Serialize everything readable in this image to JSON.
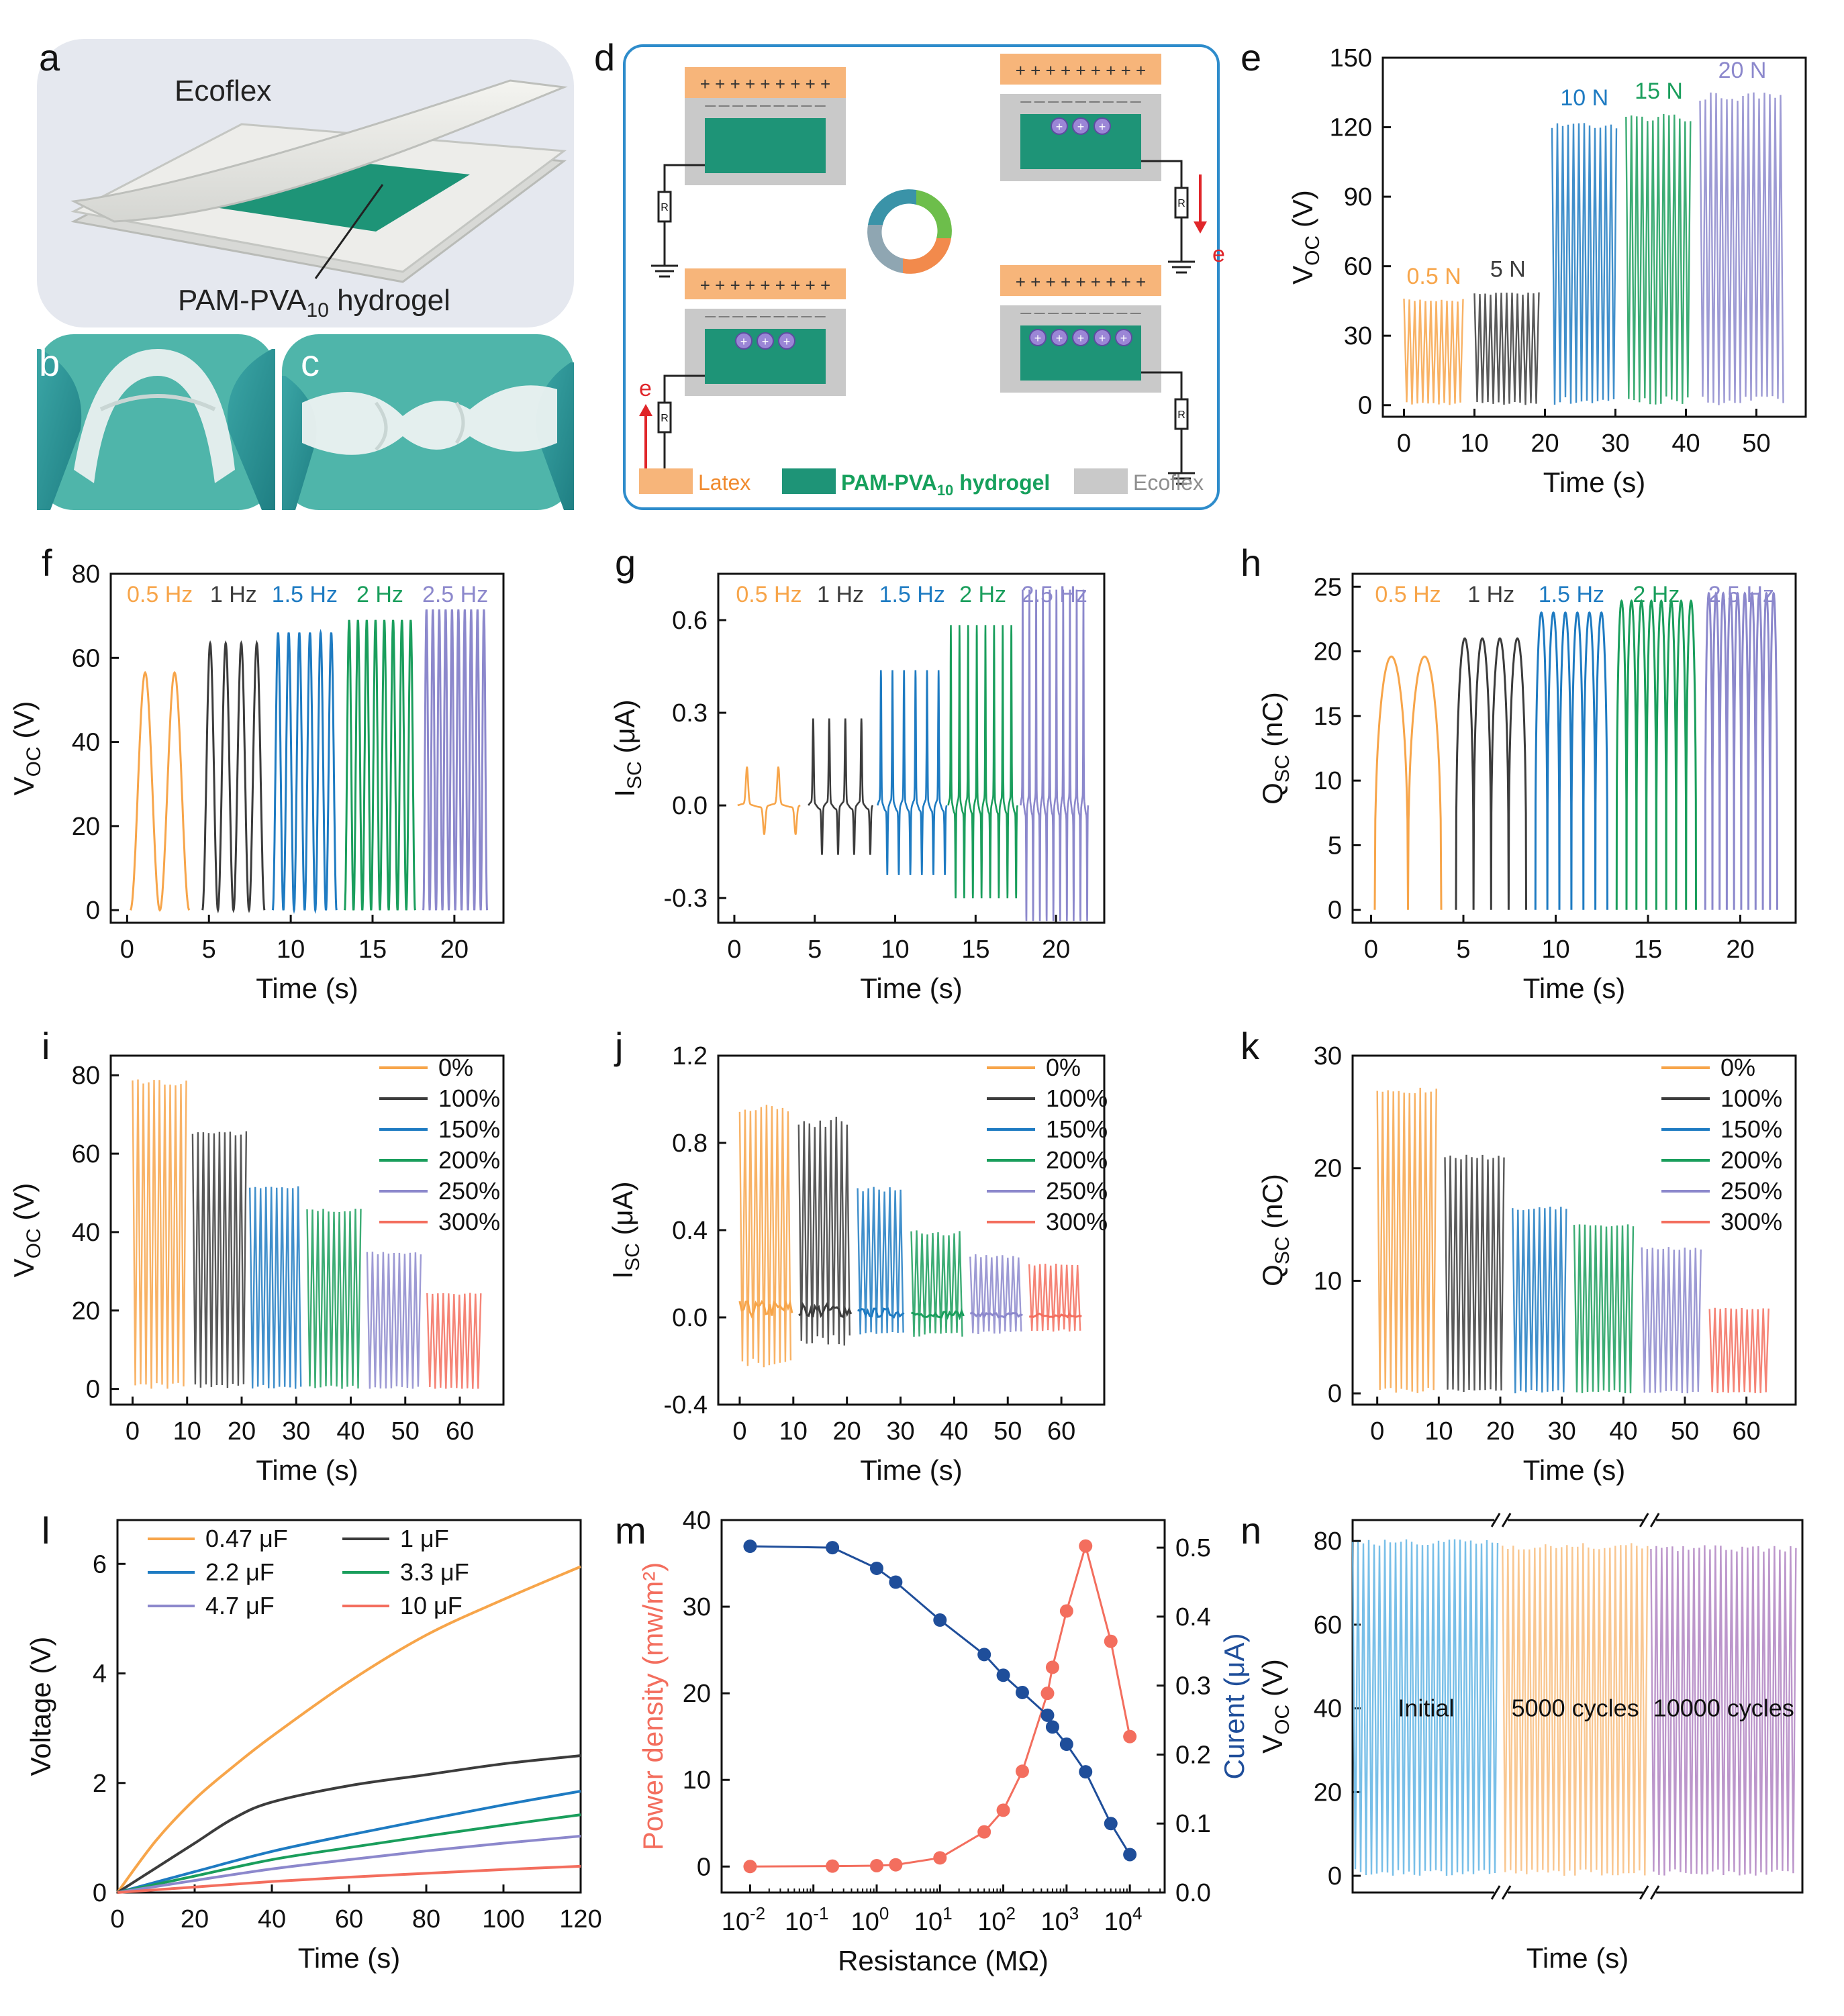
{
  "panel_labels": [
    "a",
    "b",
    "c",
    "d",
    "e",
    "f",
    "g",
    "h",
    "i",
    "j",
    "k",
    "l",
    "m",
    "n"
  ],
  "colors": {
    "orange": "#F7A54A",
    "black": "#3C3C3C",
    "blue": "#1E7BC2",
    "green": "#1A9E5C",
    "purple": "#8C88CC",
    "red": "#F36E5E",
    "navy": "#1F4E9A",
    "latex": "#F7B57A",
    "hydrogel": "#1E9477",
    "ecoflex": "#C9C9C9",
    "photo_bg": "#E4E7EE",
    "glove": "#2C8F93"
  },
  "photo_a": {
    "top_label": "Ecoflex",
    "bottom_label": "PAM-PVA",
    "bottom_sub": "10",
    "bottom_tail": " hydrogel"
  },
  "schematic_d": {
    "plus_row": "+ + + + + + + + +",
    "minus_row": "— — — — — — — — —",
    "resistor": "R",
    "electron": "e",
    "legend": [
      {
        "text": "Latex",
        "color": "#F7B57A",
        "text_color": "#F08A2E"
      },
      {
        "text": "PAM-PVA",
        "sub": "10",
        "tail": " hydrogel",
        "color": "#1E9477",
        "text_color": "#16A05C"
      },
      {
        "text": "Ecoflex",
        "color": "#C9C9C9",
        "text_color": "#8E8E8E"
      }
    ]
  },
  "chart_data": [
    {
      "id": "e",
      "type": "line",
      "xlabel": "Time (s)",
      "ylabel": "V",
      "ylabel_sub": "OC",
      "ylabel_unit": " (V)",
      "xlim": [
        -3,
        57
      ],
      "ylim": [
        -5,
        150
      ],
      "xticks": [
        0,
        10,
        20,
        30,
        40,
        50
      ],
      "yticks": [
        0,
        30,
        60,
        90,
        120,
        150
      ],
      "series": [
        {
          "name": "0.5 N",
          "x_range": [
            0,
            8.5
          ],
          "peak": 46,
          "color": "#F7A54A"
        },
        {
          "name": "5 N",
          "x_range": [
            10,
            19.5
          ],
          "peak": 49,
          "color": "#3C3C3C"
        },
        {
          "name": "10 N",
          "x_range": [
            21,
            30.2
          ],
          "peak": 123,
          "color": "#1E7BC2"
        },
        {
          "name": "15 N",
          "x_range": [
            31.5,
            40.8
          ],
          "peak": 126,
          "color": "#1A9E5C"
        },
        {
          "name": "20 N",
          "x_range": [
            42,
            54
          ],
          "peak": 135,
          "color": "#8C88CC"
        }
      ]
    },
    {
      "id": "f",
      "type": "line",
      "xlabel": "Time (s)",
      "ylabel": "V",
      "ylabel_sub": "OC",
      "ylabel_unit": " (V)",
      "xlim": [
        -1,
        23
      ],
      "ylim": [
        -3,
        80
      ],
      "xticks": [
        0,
        5,
        10,
        15,
        20
      ],
      "yticks": [
        0,
        20,
        40,
        60,
        80
      ],
      "series": [
        {
          "name": "0.5 Hz",
          "x_range": [
            0.2,
            3.8
          ],
          "peak": 56.5,
          "cycles": 2,
          "color": "#F7A54A"
        },
        {
          "name": "1 Hz",
          "x_range": [
            4.6,
            8.4
          ],
          "peak": 63.5,
          "cycles": 4,
          "color": "#3C3C3C"
        },
        {
          "name": "1.5 Hz",
          "x_range": [
            8.9,
            12.8
          ],
          "peak": 66,
          "cycles": 6,
          "color": "#1E7BC2"
        },
        {
          "name": "2 Hz",
          "x_range": [
            13.3,
            17.6
          ],
          "peak": 69,
          "cycles": 8,
          "color": "#1A9E5C"
        },
        {
          "name": "2.5 Hz",
          "x_range": [
            18.1,
            22
          ],
          "peak": 71.5,
          "cycles": 10,
          "color": "#8C88CC"
        }
      ]
    },
    {
      "id": "g",
      "type": "line",
      "xlabel": "Time (s)",
      "ylabel": "I",
      "ylabel_sub": "SC",
      "ylabel_unit": " (μA)",
      "xlim": [
        -1,
        23
      ],
      "ylim": [
        -0.38,
        0.75
      ],
      "xticks": [
        0,
        5,
        10,
        15,
        20
      ],
      "yticks": [
        -0.3,
        0.0,
        0.3,
        0.6
      ],
      "series": [
        {
          "name": "0.5 Hz",
          "x_range": [
            0.2,
            4.1
          ],
          "peak": 0.12,
          "trough": -0.09,
          "cycles": 2,
          "color": "#F7A54A"
        },
        {
          "name": "1 Hz",
          "x_range": [
            4.6,
            8.6
          ],
          "peak": 0.27,
          "trough": -0.15,
          "cycles": 4,
          "color": "#3C3C3C"
        },
        {
          "name": "1.5 Hz",
          "x_range": [
            8.9,
            13.2
          ],
          "peak": 0.42,
          "trough": -0.21,
          "cycles": 6,
          "color": "#1E7BC2"
        },
        {
          "name": "2 Hz",
          "x_range": [
            13.3,
            17.6
          ],
          "peak": 0.56,
          "trough": -0.28,
          "cycles": 8,
          "color": "#1A9E5C"
        },
        {
          "name": "2.5 Hz",
          "x_range": [
            17.8,
            22
          ],
          "peak": 0.67,
          "trough": -0.35,
          "cycles": 10,
          "color": "#8C88CC"
        }
      ]
    },
    {
      "id": "h",
      "type": "line",
      "xlabel": "Time (s)",
      "ylabel": "Q",
      "ylabel_sub": "SC",
      "ylabel_unit": " (nC)",
      "xlim": [
        -1,
        23
      ],
      "ylim": [
        -1,
        26
      ],
      "xticks": [
        0,
        5,
        10,
        15,
        20
      ],
      "yticks": [
        0,
        5,
        10,
        15,
        20,
        25
      ],
      "series": [
        {
          "name": "0.5 Hz",
          "x_range": [
            0.2,
            3.8
          ],
          "peak": 19.6,
          "cycles": 2,
          "color": "#F7A54A"
        },
        {
          "name": "1 Hz",
          "x_range": [
            4.6,
            8.4
          ],
          "peak": 21,
          "cycles": 4,
          "color": "#3C3C3C"
        },
        {
          "name": "1.5 Hz",
          "x_range": [
            8.9,
            12.8
          ],
          "peak": 23,
          "cycles": 6,
          "color": "#1E7BC2"
        },
        {
          "name": "2 Hz",
          "x_range": [
            13.3,
            17.6
          ],
          "peak": 23.9,
          "cycles": 8,
          "color": "#1A9E5C"
        },
        {
          "name": "2.5 Hz",
          "x_range": [
            18.1,
            22
          ],
          "peak": 24.5,
          "cycles": 10,
          "color": "#8C88CC"
        }
      ]
    },
    {
      "id": "i",
      "type": "line",
      "xlabel": "Time (s)",
      "ylabel": "V",
      "ylabel_sub": "OC",
      "ylabel_unit": " (V)",
      "xlim": [
        -4,
        68
      ],
      "ylim": [
        -4,
        85
      ],
      "xticks": [
        0,
        10,
        20,
        30,
        40,
        50,
        60
      ],
      "yticks": [
        0,
        20,
        40,
        60,
        80
      ],
      "series": [
        {
          "name": "0%",
          "x_range": [
            0,
            10
          ],
          "peak": 79,
          "color": "#F7A54A"
        },
        {
          "name": "100%",
          "x_range": [
            11,
            21
          ],
          "peak": 66,
          "color": "#3C3C3C"
        },
        {
          "name": "150%",
          "x_range": [
            21.5,
            31
          ],
          "peak": 52,
          "color": "#1E7BC2"
        },
        {
          "name": "200%",
          "x_range": [
            32,
            42
          ],
          "peak": 46,
          "color": "#1A9E5C"
        },
        {
          "name": "250%",
          "x_range": [
            43,
            53
          ],
          "peak": 35,
          "color": "#8C88CC"
        },
        {
          "name": "300%",
          "x_range": [
            54,
            64
          ],
          "peak": 24.5,
          "color": "#F36E5E"
        }
      ]
    },
    {
      "id": "j",
      "type": "line",
      "xlabel": "Time (s)",
      "ylabel": "I",
      "ylabel_sub": "SC",
      "ylabel_unit": " (μA)",
      "xlim": [
        -4,
        68
      ],
      "ylim": [
        -0.4,
        1.2
      ],
      "xticks": [
        0,
        10,
        20,
        30,
        40,
        50,
        60
      ],
      "yticks": [
        -0.4,
        0.0,
        0.4,
        0.8,
        1.2
      ],
      "series": [
        {
          "name": "0%",
          "x_range": [
            0,
            10
          ],
          "peak": 1.0,
          "trough": -0.25,
          "color": "#F7A54A"
        },
        {
          "name": "100%",
          "x_range": [
            11,
            21
          ],
          "peak": 0.92,
          "trough": -0.13,
          "color": "#3C3C3C"
        },
        {
          "name": "150%",
          "x_range": [
            22,
            31
          ],
          "peak": 0.6,
          "trough": -0.1,
          "color": "#1E7BC2"
        },
        {
          "name": "200%",
          "x_range": [
            32,
            42
          ],
          "peak": 0.4,
          "trough": -0.09,
          "color": "#1A9E5C"
        },
        {
          "name": "250%",
          "x_range": [
            43,
            53
          ],
          "peak": 0.29,
          "trough": -0.08,
          "color": "#8C88CC"
        },
        {
          "name": "300%",
          "x_range": [
            54,
            64
          ],
          "peak": 0.25,
          "trough": -0.07,
          "color": "#F36E5E"
        }
      ]
    },
    {
      "id": "k",
      "type": "line",
      "xlabel": "Time (s)",
      "ylabel": "Q",
      "ylabel_sub": "SC",
      "ylabel_unit": " (nC)",
      "xlim": [
        -4,
        68
      ],
      "ylim": [
        -1,
        30
      ],
      "xticks": [
        0,
        10,
        20,
        30,
        40,
        50,
        60
      ],
      "yticks": [
        0,
        10,
        20,
        30
      ],
      "series": [
        {
          "name": "0%",
          "x_range": [
            0,
            10
          ],
          "peak": 27.2,
          "color": "#F7A54A"
        },
        {
          "name": "100%",
          "x_range": [
            11,
            21
          ],
          "peak": 21.2,
          "color": "#3C3C3C"
        },
        {
          "name": "150%",
          "x_range": [
            22,
            31
          ],
          "peak": 16.6,
          "color": "#1E7BC2"
        },
        {
          "name": "200%",
          "x_range": [
            32,
            42
          ],
          "peak": 15.1,
          "color": "#1A9E5C"
        },
        {
          "name": "250%",
          "x_range": [
            43,
            53
          ],
          "peak": 13,
          "color": "#8C88CC"
        },
        {
          "name": "300%",
          "x_range": [
            54,
            64
          ],
          "peak": 7.6,
          "color": "#F36E5E"
        }
      ]
    },
    {
      "id": "l",
      "type": "line",
      "xlabel": "Time (s)",
      "ylabel": "Voltage (V)",
      "xlim": [
        0,
        120
      ],
      "ylim": [
        0,
        6.8
      ],
      "xticks": [
        0,
        20,
        40,
        60,
        80,
        100,
        120
      ],
      "yticks": [
        0,
        2,
        4,
        6
      ],
      "series": [
        {
          "name": "0.47 μF",
          "color": "#F7A54A",
          "x": [
            0,
            10,
            20,
            30,
            40,
            60,
            80,
            100,
            120
          ],
          "y": [
            0,
            0.95,
            1.7,
            2.3,
            2.85,
            3.85,
            4.7,
            5.35,
            5.95
          ]
        },
        {
          "name": "1 μF",
          "color": "#3C3C3C",
          "x": [
            0,
            10,
            20,
            30,
            40,
            60,
            80,
            100,
            120
          ],
          "y": [
            0,
            0.45,
            0.9,
            1.35,
            1.65,
            1.95,
            2.15,
            2.35,
            2.5
          ]
        },
        {
          "name": "2.2 μF",
          "color": "#1E7BC2",
          "x": [
            0,
            20,
            40,
            60,
            80,
            100,
            120
          ],
          "y": [
            0,
            0.38,
            0.75,
            1.05,
            1.33,
            1.6,
            1.85
          ]
        },
        {
          "name": "3.3 μF",
          "color": "#1A9E5C",
          "x": [
            0,
            20,
            40,
            60,
            80,
            100,
            120
          ],
          "y": [
            0,
            0.3,
            0.6,
            0.82,
            1.03,
            1.23,
            1.42
          ]
        },
        {
          "name": "4.7 μF",
          "color": "#8C88CC",
          "x": [
            0,
            20,
            40,
            60,
            80,
            100,
            120
          ],
          "y": [
            0,
            0.22,
            0.43,
            0.6,
            0.76,
            0.9,
            1.03
          ]
        },
        {
          "name": "10 μF",
          "color": "#F36E5E",
          "x": [
            0,
            20,
            40,
            60,
            80,
            100,
            120
          ],
          "y": [
            0,
            0.1,
            0.2,
            0.28,
            0.35,
            0.42,
            0.48
          ]
        }
      ]
    },
    {
      "id": "m",
      "type": "scatter",
      "xlabel": "Resistance (MΩ)",
      "ylabel": "Power density (mw/m²)",
      "y2label": "Curent (μA)",
      "xscale": "log",
      "xlim_log10": [
        -2.45,
        4.55
      ],
      "ylim": [
        -3,
        40
      ],
      "y2lim": [
        0.0,
        0.54
      ],
      "xtick_exponents": [
        "-2",
        "-1",
        "0",
        "1",
        "2",
        "3",
        "4"
      ],
      "yticks": [
        0,
        10,
        20,
        30,
        40
      ],
      "y2ticks": [
        0.0,
        0.1,
        0.2,
        0.3,
        0.4,
        0.5
      ],
      "x_ohm": [
        0.01,
        0.2,
        1,
        2,
        10,
        50,
        100,
        200,
        500,
        600,
        1000,
        2000,
        5000,
        10000
      ],
      "series": [
        {
          "name": "Power density",
          "axis": "left",
          "color": "#F36E5E",
          "y": [
            0.0,
            0.05,
            0.1,
            0.2,
            1.0,
            4.0,
            6.5,
            11.0,
            20.0,
            23.0,
            29.5,
            37.0,
            26.0,
            15.0
          ]
        },
        {
          "name": "Current",
          "axis": "right",
          "color": "#1F4E9A",
          "y": [
            0.502,
            0.5,
            0.47,
            0.45,
            0.395,
            0.345,
            0.315,
            0.29,
            0.257,
            0.24,
            0.215,
            0.175,
            0.1,
            0.055
          ]
        }
      ]
    },
    {
      "id": "n",
      "type": "line",
      "xlabel": "Time (s)",
      "ylabel": "V",
      "ylabel_sub": "OC",
      "ylabel_unit": " (V)",
      "xlim": [
        0,
        30
      ],
      "ylim": [
        -4,
        85
      ],
      "yticks": [
        0,
        20,
        40,
        60,
        80
      ],
      "series": [
        {
          "name": "Initial",
          "x_range": [
            0,
            9.8
          ],
          "peak": 80.5,
          "color": "#69B8E6"
        },
        {
          "name": "5000 cycles",
          "x_range": [
            10,
            19.7
          ],
          "peak": 79.5,
          "color": "#F8C185"
        },
        {
          "name": "10000 cycles",
          "x_range": [
            19.9,
            29.6
          ],
          "peak": 79,
          "color": "#B58BC5"
        }
      ]
    }
  ]
}
